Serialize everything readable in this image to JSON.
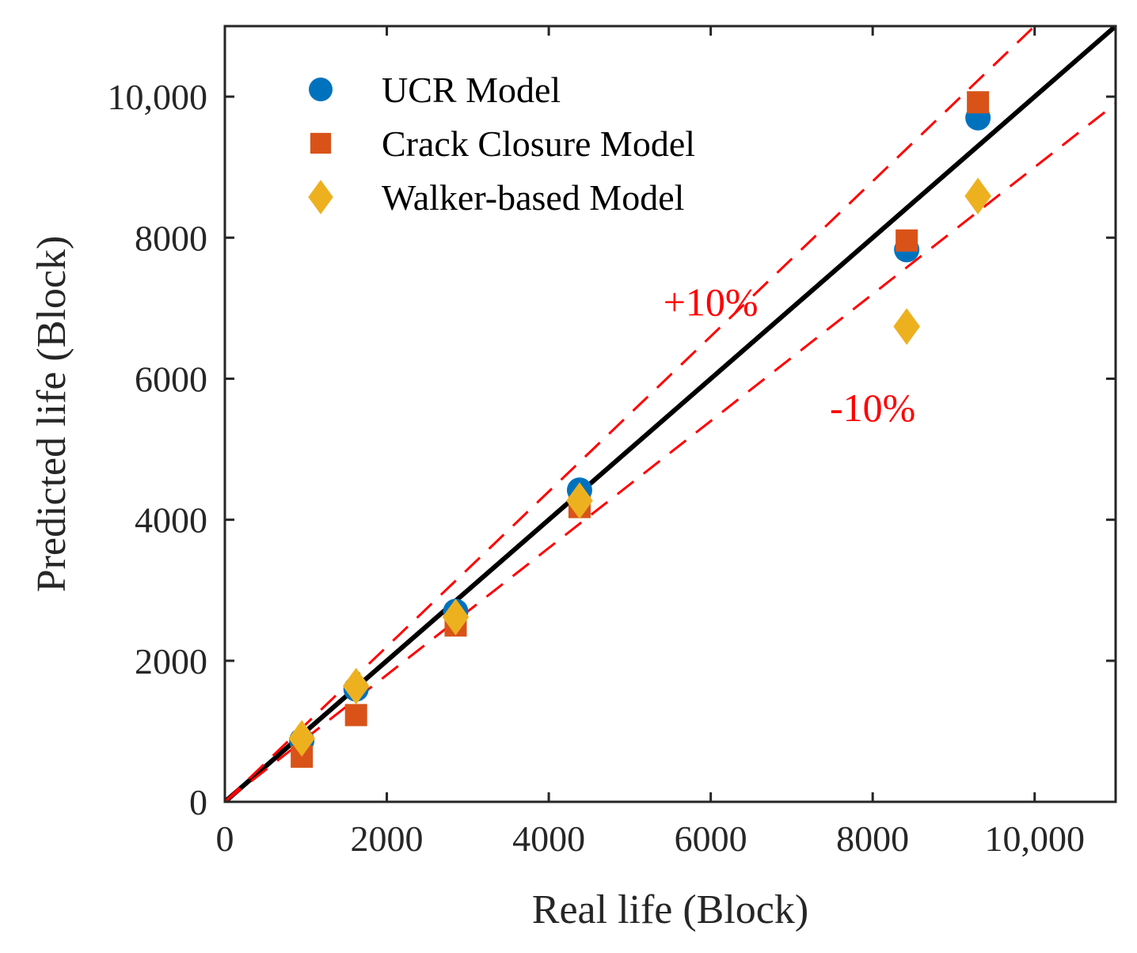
{
  "chart_data": {
    "type": "scatter",
    "title": "",
    "xlabel": "Real life (Block)",
    "ylabel": "Predicted life (Block)",
    "xlim": [
      0,
      11000
    ],
    "ylim": [
      0,
      11000
    ],
    "xticks": [
      0,
      2000,
      4000,
      6000,
      8000,
      10000
    ],
    "xtick_labels": [
      "0",
      "2000",
      "4000",
      "6000",
      "8000",
      "10,000"
    ],
    "yticks": [
      0,
      2000,
      4000,
      6000,
      8000,
      10000
    ],
    "ytick_labels": [
      "0",
      "2000",
      "4000",
      "6000",
      "8000",
      "10,000"
    ],
    "grid": false,
    "legend_position": "top-left",
    "series": [
      {
        "name": "UCR Model",
        "marker": "circle",
        "color": "#0072BD",
        "x": [
          950,
          1620,
          2850,
          4380,
          8420,
          9300
        ],
        "y": [
          870,
          1600,
          2700,
          4420,
          7830,
          9700
        ]
      },
      {
        "name": "Crack Closure Model",
        "marker": "square",
        "color": "#D95319",
        "x": [
          950,
          1620,
          2850,
          4380,
          8420,
          9300
        ],
        "y": [
          640,
          1230,
          2500,
          4180,
          7960,
          9920
        ]
      },
      {
        "name": "Walker-based Model",
        "marker": "diamond",
        "color": "#EDB120",
        "x": [
          950,
          1620,
          2850,
          4380,
          8420,
          9300
        ],
        "y": [
          900,
          1640,
          2620,
          4270,
          6740,
          8590
        ]
      }
    ],
    "reference_lines": [
      {
        "name": "1:1 line",
        "slope": 1.0,
        "color": "#000000",
        "style": "solid"
      },
      {
        "name": "+10% band",
        "slope": 1.1,
        "color": "#FF0000",
        "style": "dashed"
      },
      {
        "name": "-10% band",
        "slope": 0.9,
        "color": "#FF0000",
        "style": "dashed"
      }
    ],
    "annotations": [
      {
        "text": "+10%",
        "x": 6000,
        "y": 6900,
        "color": "#FF0000"
      },
      {
        "text": "-10%",
        "x": 8000,
        "y": 5400,
        "color": "#FF0000"
      }
    ]
  }
}
